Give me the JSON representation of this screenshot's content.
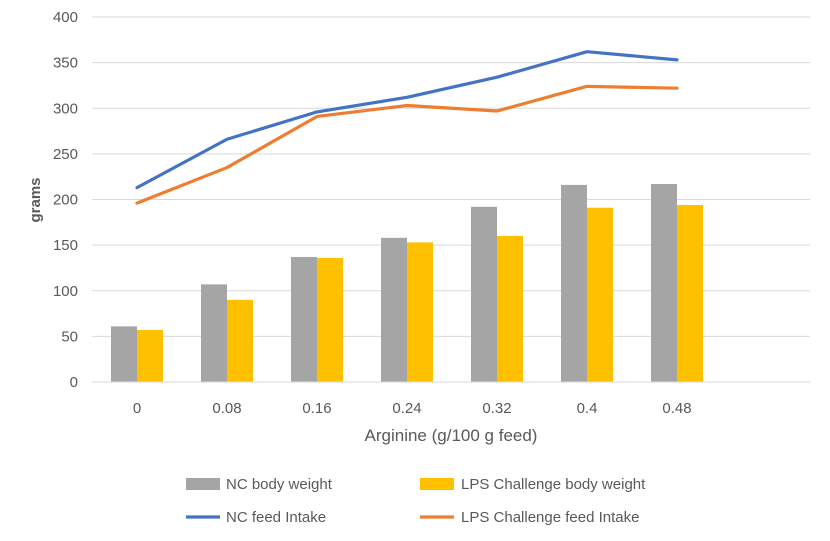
{
  "chart_data": {
    "type": "bar",
    "title": "",
    "xlabel": "Arginine (g/100 g feed)",
    "ylabel": "grams",
    "ylim": [
      0,
      400
    ],
    "yticks": [
      "0",
      "50",
      "100",
      "150",
      "200",
      "250",
      "300",
      "350",
      "400"
    ],
    "categories": [
      "0",
      "0.08",
      "0.16",
      "0.24",
      "0.32",
      "0.4",
      "0.48"
    ],
    "grid": true,
    "legend_position": "bottom",
    "series": [
      {
        "name": "NC body weight",
        "type": "bar",
        "color": "#a5a5a5",
        "values": [
          61,
          107,
          137,
          158,
          192,
          216,
          217
        ]
      },
      {
        "name": "LPS Challenge body weight",
        "type": "bar",
        "color": "#ffc000",
        "values": [
          57,
          90,
          136,
          153,
          160,
          191,
          194
        ]
      },
      {
        "name": "NC feed Intake",
        "type": "line",
        "color": "#4472c4",
        "values": [
          213,
          266,
          296,
          312,
          334,
          362,
          353
        ]
      },
      {
        "name": "LPS Challenge feed Intake",
        "type": "line",
        "color": "#ed7d31",
        "values": [
          196,
          235,
          291,
          303,
          297,
          324,
          322
        ]
      }
    ]
  }
}
